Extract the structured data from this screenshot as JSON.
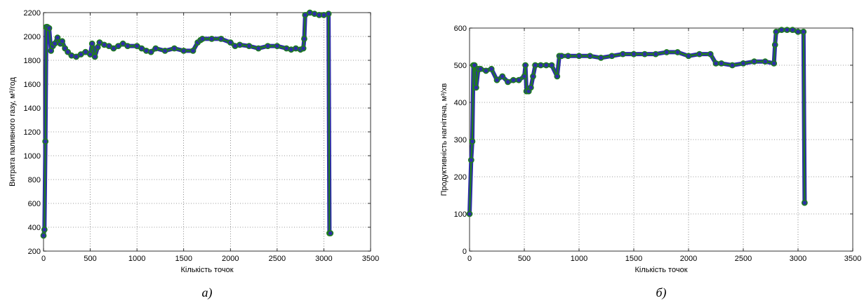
{
  "chart_data": [
    {
      "type": "line",
      "caption": "а)",
      "xlabel": "Кількість точок",
      "ylabel": "Витрата паливного газу, м³/год",
      "xlim": [
        0,
        3500
      ],
      "ylim": [
        200,
        2200
      ],
      "xticks": [
        "0",
        "500",
        "1000",
        "1500",
        "2000",
        "2500",
        "3000",
        "3500"
      ],
      "yticks": [
        "200",
        "400",
        "600",
        "800",
        "1000",
        "1200",
        "1400",
        "1600",
        "1800",
        "2000",
        "2200"
      ],
      "grid": true,
      "colors": {
        "marker": "#2e2ea6",
        "line": "#1e7d1e"
      },
      "series": [
        {
          "x": [
            0,
            10,
            20,
            30,
            40,
            60,
            80,
            100,
            120,
            150,
            180,
            200,
            230,
            260,
            300,
            350,
            400,
            450,
            500,
            520,
            550,
            580,
            600,
            650,
            700,
            750,
            800,
            850,
            900,
            1000,
            1050,
            1100,
            1150,
            1200,
            1300,
            1400,
            1500,
            1600,
            1650,
            1680,
            1700,
            1800,
            1900,
            2000,
            2050,
            2100,
            2200,
            2300,
            2400,
            2500,
            2600,
            2650,
            2700,
            2750,
            2780,
            2790,
            2800,
            2850,
            2900,
            2950,
            3000,
            3050,
            3060,
            3070
          ],
          "y": [
            330,
            380,
            1120,
            2080,
            2080,
            2070,
            1880,
            1920,
            1940,
            1990,
            1940,
            1960,
            1900,
            1870,
            1840,
            1830,
            1850,
            1870,
            1850,
            1940,
            1830,
            1910,
            1950,
            1930,
            1920,
            1900,
            1920,
            1940,
            1920,
            1920,
            1900,
            1880,
            1870,
            1900,
            1880,
            1900,
            1880,
            1880,
            1950,
            1970,
            1980,
            1980,
            1980,
            1950,
            1920,
            1930,
            1920,
            1900,
            1920,
            1920,
            1900,
            1890,
            1900,
            1890,
            1900,
            1980,
            2180,
            2200,
            2190,
            2180,
            2180,
            2190,
            350,
            350
          ]
        }
      ]
    },
    {
      "type": "line",
      "caption": "б)",
      "xlabel": "Кількість точок",
      "ylabel": "Продуктивність нагнітача, м³/хв",
      "xlim": [
        0,
        3500
      ],
      "ylim": [
        0,
        600
      ],
      "xticks": [
        "0",
        "500",
        "1000",
        "1500",
        "2000",
        "2500",
        "3000",
        "3500"
      ],
      "yticks": [
        "0",
        "100",
        "200",
        "300",
        "400",
        "500",
        "600"
      ],
      "grid": true,
      "colors": {
        "marker": "#2e2ea6",
        "line": "#1e7d1e"
      },
      "series": [
        {
          "x": [
            0,
            15,
            25,
            35,
            45,
            60,
            80,
            100,
            150,
            200,
            250,
            300,
            350,
            400,
            450,
            500,
            510,
            520,
            540,
            560,
            580,
            600,
            650,
            700,
            750,
            800,
            820,
            840,
            900,
            1000,
            1100,
            1200,
            1300,
            1400,
            1500,
            1600,
            1700,
            1800,
            1900,
            2000,
            2100,
            2200,
            2250,
            2300,
            2400,
            2500,
            2600,
            2700,
            2780,
            2790,
            2800,
            2850,
            2900,
            2950,
            3000,
            3050,
            3060
          ],
          "y": [
            100,
            245,
            295,
            500,
            500,
            440,
            490,
            490,
            485,
            490,
            460,
            470,
            455,
            460,
            460,
            470,
            500,
            430,
            430,
            440,
            470,
            500,
            500,
            500,
            500,
            470,
            525,
            525,
            525,
            525,
            525,
            520,
            525,
            530,
            530,
            530,
            530,
            535,
            535,
            525,
            530,
            530,
            505,
            505,
            500,
            505,
            510,
            510,
            505,
            555,
            590,
            595,
            595,
            595,
            590,
            590,
            130
          ]
        }
      ]
    }
  ]
}
